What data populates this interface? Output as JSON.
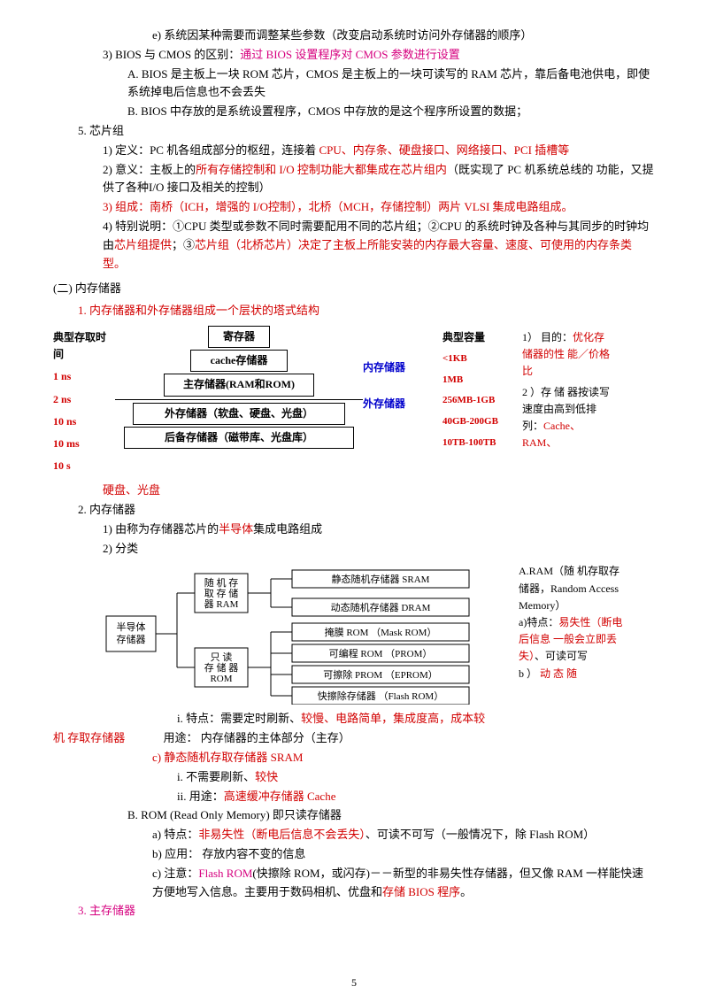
{
  "colors": {
    "magenta": "#d6007f",
    "red": "#d20000",
    "blue": "#0000cc",
    "black": "#000000"
  },
  "top": {
    "e": "e)  系统因某种需要而调整某些参数（改变启动系统时访问外存储器的顺序）",
    "l3": "3)  BIOS 与 CMOS 的区别：",
    "l3_m": "通过 BIOS 设置程序对 CMOS 参数进行设置",
    "l3A": "A.  BIOS 是主板上一块 ROM 芯片，CMOS 是主板上的一块可读写的 RAM 芯片，靠后备电池供电，即使系统掉电后信息也不会丢失",
    "l3B": "B.  BIOS 中存放的是系统设置程序，CMOS 中存放的是这个程序所设置的数据；"
  },
  "s5": {
    "title": "5.  芯片组",
    "l1a": "1)  定义：PC 机各组成部分的枢纽，连接着 ",
    "l1b": "CPU、内存条、硬盘接口、网络接口、PCI 插槽等",
    "l2a": "2)  意义：主板上的",
    "l2b": "所有存储控制和 I/O 控制功能大都集成在芯片组内",
    "l2c": "（既实现了 PC 机系统总线的 功能，又提供了各种I/O 接口及相关的控制）",
    "l3": "3)  组成：南桥（ICH，增强的 I/O控制），北桥（MCH，存储控制）两片 VLSI 集成电路组成。",
    "l4a": "4)  特别说明：①CPU 类型或参数不同时需要配用不同的芯片组；②CPU 的系统时钟及各种与其同步的时钟均由",
    "l4b": "芯片组提供",
    "l4c": "；③",
    "l4d": "芯片组（北桥芯片）决定了主板上所能安装的内存最大容量、速度、可使用的内存条类型。"
  },
  "sec2_title": "(二) 内存储器",
  "sec2_1": "1.  内存储器和外存储器组成一个层状的塔式结构",
  "mem": {
    "left_header": "典型存取时间",
    "times": [
      "1 ns",
      "2 ns",
      "10 ns",
      "10 ms",
      "10 s"
    ],
    "boxes": [
      "寄存器",
      "cache存储器",
      "主存储器(RAM和ROM)",
      "外存储器（软盘、硬盘、光盘）",
      "后备存储器（磁带库、光盘库）"
    ],
    "widths": [
      70,
      110,
      170,
      240,
      260
    ],
    "label_in": "内存储器",
    "label_out": "外存储器",
    "cap_header": "典型容量",
    "caps": [
      "<1KB",
      "1MB",
      "256MB-1GB",
      "40GB-200GB",
      "10TB-100TB"
    ],
    "note1a": "1） 目的：",
    "note1b": "优化存储器的性 能／价格比",
    "note2a": "2 ）存 储 器按读写速度由高到低排列：",
    "note2b": "Cache、RAM、",
    "after": "硬盘、光盘"
  },
  "s2_2": {
    "title": "2.  内存储器",
    "l1a": "1)  由称为存储器芯片的",
    "l1b": "半导体",
    "l1c": "集成电路组成",
    "l2": "2)  分类"
  },
  "tree": {
    "root": "半导体\n存储器",
    "ram": "随 机 存\n取 存 储\n器 RAM",
    "rom": "只    读\n存 储 器\nROM",
    "leaves": [
      "静态随机存储器 SRAM",
      "动态随机存储器 DRAM",
      "掩膜 ROM （Mask ROM）",
      "可编程 ROM （PROM）",
      "可擦除 PROM （EPROM）",
      "快擦除存储器 （Flash ROM）"
    ],
    "right": {
      "a1": "A.RAM（随  机存取存储器，Random Access Memory）",
      "a2": "a)特点：",
      "a2r": "易失性（断电后信息 一般会立即丢失）",
      "a2b": "、可读可写",
      "b": "b ） ",
      "br": "动 态 随"
    }
  },
  "after_tree": {
    "line_mix_a": "机 存取存储器",
    "line_mix_b": "用途： 内存储器的主体部分（主存）",
    "i_a": "i.    特点：需要定时刷新、",
    "i_b": "较慢、电路简单，集成度高，成本较",
    "c": "c)  静态随机存取存储器 SRAM",
    "ci": "i.    不需要刷新、",
    "ci_r": "较快",
    "cii_a": "ii.    用途：",
    "cii_b": "高速缓冲存储器 Cache",
    "B": "B.  ROM (Read Only Memory) 即只读存储器",
    "Ba_a": "a)  特点：",
    "Ba_b": "非易失性（断电后信息不会丢失）",
    "Ba_c": "、可读不可写（一般情况下，除 Flash ROM）",
    "Bb": "b)  应用： 存放内容不变的信息",
    "Bc_a": "c)  注意：",
    "Bc_b": "Flash ROM",
    "Bc_c": "(快擦除 ROM，或闪存)－－新型的非易失性存储器，但又像 RAM 一样能快速方便地写入信息。主要用于数码相机、优盘和",
    "Bc_d": "存储 BIOS 程序",
    "Bc_e": "。"
  },
  "s2_3": "3.  主存储器",
  "page_number": "5"
}
